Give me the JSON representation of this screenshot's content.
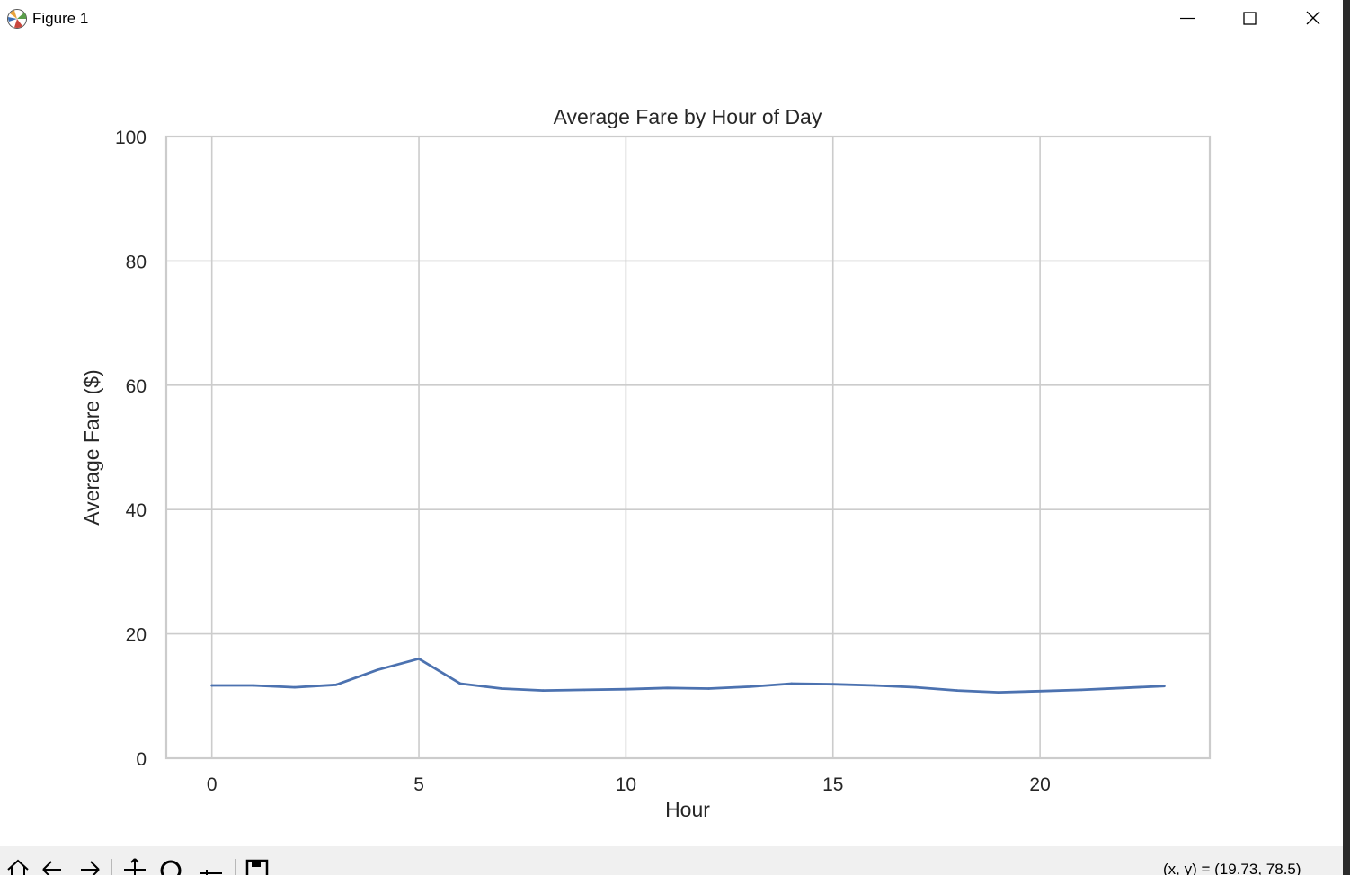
{
  "window": {
    "title": "Figure 1",
    "icon": "matplotlib-icon",
    "controls": [
      "minimize-icon",
      "maximize-icon",
      "close-icon"
    ]
  },
  "toolbar": {
    "tools": [
      "home-icon",
      "back-arrow-icon",
      "forward-arrow-icon",
      "pan-icon",
      "zoom-icon",
      "subplots-icon",
      "save-icon"
    ],
    "coordinates": "(x, y) = (19.73, 78.5)"
  },
  "chart_data": {
    "type": "line",
    "title": "Average Fare by Hour of Day",
    "xlabel": "Hour",
    "ylabel": "Average Fare ($)",
    "xlim": [
      -1.1,
      24.1
    ],
    "ylim": [
      0,
      100
    ],
    "xticks": [
      0,
      5,
      10,
      15,
      20
    ],
    "yticks": [
      0,
      20,
      40,
      60,
      80,
      100
    ],
    "grid": true,
    "series": [
      {
        "color": "#4c72b0",
        "x": [
          0,
          1,
          2,
          3,
          4,
          5,
          6,
          7,
          8,
          9,
          10,
          11,
          12,
          13,
          14,
          15,
          16,
          17,
          18,
          19,
          20,
          21,
          22,
          23
        ],
        "y": [
          11.7,
          11.7,
          11.4,
          11.8,
          14.2,
          16.0,
          12.0,
          11.2,
          10.9,
          11.0,
          11.1,
          11.3,
          11.2,
          11.5,
          12.0,
          11.9,
          11.7,
          11.4,
          10.9,
          10.6,
          10.8,
          11.0,
          11.3,
          11.6
        ]
      }
    ],
    "colors": {
      "grid": "#cccccc",
      "spine": "#cccccc",
      "text": "#262626"
    }
  }
}
